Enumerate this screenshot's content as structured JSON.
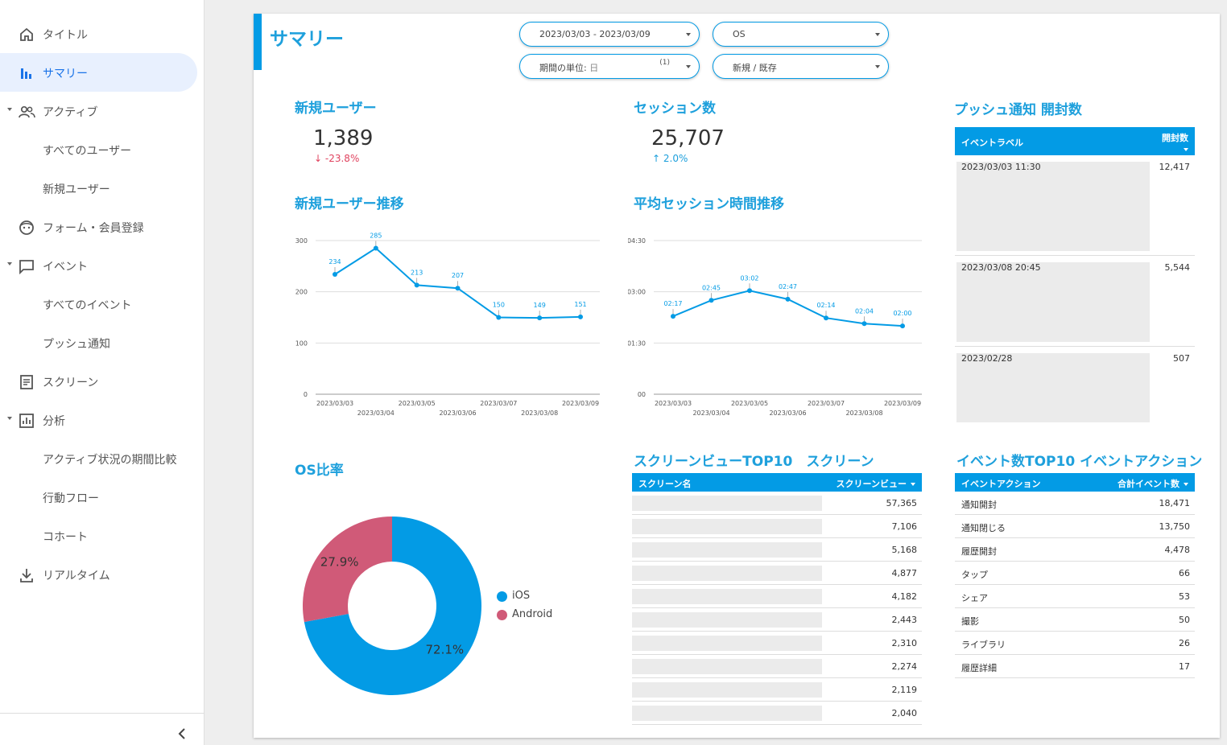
{
  "sidebar": {
    "items": [
      {
        "label": "タイトル",
        "icon": "home-icon",
        "active": false,
        "caret": false
      },
      {
        "label": "サマリー",
        "icon": "bar-chart-icon",
        "active": true,
        "caret": false
      },
      {
        "label": "アクティブ",
        "icon": "people-icon",
        "active": false,
        "caret": true
      },
      {
        "label": "すべてのユーザー",
        "icon": "",
        "active": false,
        "caret": false
      },
      {
        "label": "新規ユーザー",
        "icon": "",
        "active": false,
        "caret": false
      },
      {
        "label": "フォーム・会員登録",
        "icon": "face-icon",
        "active": false,
        "caret": false
      },
      {
        "label": "イベント",
        "icon": "chat-bubble-icon",
        "active": false,
        "caret": true
      },
      {
        "label": "すべてのイベント",
        "icon": "",
        "active": false,
        "caret": false
      },
      {
        "label": "プッシュ通知",
        "icon": "",
        "active": false,
        "caret": false
      },
      {
        "label": "スクリーン",
        "icon": "article-icon",
        "active": false,
        "caret": false
      },
      {
        "label": "分析",
        "icon": "analytics-icon",
        "active": false,
        "caret": true
      },
      {
        "label": "アクティブ状況の期間比較",
        "icon": "",
        "active": false,
        "caret": false
      },
      {
        "label": "行動フロー",
        "icon": "",
        "active": false,
        "caret": false
      },
      {
        "label": "コホート",
        "icon": "",
        "active": false,
        "caret": false
      },
      {
        "label": "リアルタイム",
        "icon": "download-icon",
        "active": false,
        "caret": false
      }
    ]
  },
  "header": {
    "title": "サマリー"
  },
  "filters": {
    "date_range": "2023/03/03 - 2023/03/09",
    "os": "OS",
    "period_label": "期間の単位:",
    "period_value": "日",
    "period_count": "(1)",
    "user_type": "新規 / 既存"
  },
  "kpi_new_users": {
    "title": "新規ユーザー",
    "value": "1,389",
    "delta": "-23.8%"
  },
  "kpi_sessions": {
    "title": "セッション数",
    "value": "25,707",
    "delta": "2.0%"
  },
  "chart_titles": {
    "new_users_trend": "新規ユーザー推移",
    "avg_session_trend": "平均セッション時間推移",
    "os_ratio": "OS比率"
  },
  "chart_data": [
    {
      "type": "line",
      "title": "新規ユーザー推移",
      "x": [
        "2023/03/03",
        "2023/03/04",
        "2023/03/05",
        "2023/03/06",
        "2023/03/07",
        "2023/03/08",
        "2023/03/09"
      ],
      "values": [
        234,
        285,
        213,
        207,
        150,
        149,
        151
      ],
      "ylim": [
        0,
        300
      ],
      "yticks": [
        "300",
        "200",
        "100",
        "0"
      ],
      "color": "#039be5"
    },
    {
      "type": "line",
      "title": "平均セッション時間推移",
      "x": [
        "2023/03/03",
        "2023/03/04",
        "2023/03/05",
        "2023/03/06",
        "2023/03/07",
        "2023/03/08",
        "2023/03/09"
      ],
      "labels": [
        "02:17",
        "02:45",
        "03:02",
        "02:47",
        "02:14",
        "02:04",
        "02:00"
      ],
      "values_seconds": [
        137,
        165,
        182,
        167,
        134,
        124,
        120
      ],
      "ylim_seconds": [
        0,
        270
      ],
      "yticks": [
        "04:30",
        "03:00",
        "01:30",
        "00"
      ],
      "color": "#039be5"
    },
    {
      "type": "pie",
      "title": "OS比率",
      "slices": [
        {
          "name": "iOS",
          "value": 72.1,
          "label": "72.1%",
          "color": "#039be5"
        },
        {
          "name": "Android",
          "value": 27.9,
          "label": "27.9%",
          "color": "#d05a78"
        }
      ]
    }
  ],
  "push_table": {
    "title": "プッシュ通知 開封数",
    "col_label": "イベントラベル",
    "col_count": "開封数",
    "rows": [
      {
        "label": "2023/03/03 11:30",
        "count": "12,417"
      },
      {
        "label": "2023/03/08 20:45",
        "count": "5,544"
      },
      {
        "label": "2023/02/28",
        "count": "507"
      }
    ]
  },
  "screen_table": {
    "title": "スクリーンビューTOP10　スクリーン",
    "col_name": "スクリーン名",
    "col_views": "スクリーンビュー",
    "rows": [
      "57,365",
      "7,106",
      "5,168",
      "4,877",
      "4,182",
      "2,443",
      "2,310",
      "2,274",
      "2,119",
      "2,040"
    ]
  },
  "event_table": {
    "title": "イベント数TOP10 イベントアクション",
    "col_action": "イベントアクション",
    "col_total": "合計イベント数",
    "rows": [
      {
        "action": "通知開封",
        "count": "18,471"
      },
      {
        "action": "通知閉じる",
        "count": "13,750"
      },
      {
        "action": "履歴開封",
        "count": "4,478"
      },
      {
        "action": "タップ",
        "count": "66"
      },
      {
        "action": "シェア",
        "count": "53"
      },
      {
        "action": "撮影",
        "count": "50"
      },
      {
        "action": "ライブラリ",
        "count": "26"
      },
      {
        "action": "履歴詳細",
        "count": "17"
      }
    ]
  }
}
